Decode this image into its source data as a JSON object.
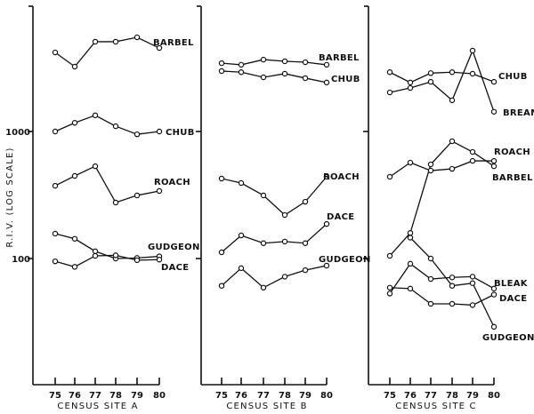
{
  "chart_data": [
    {
      "type": "line",
      "xlabel": "CENSUS SITE A",
      "ylabel": "R.I.V. (LOG SCALE)",
      "y_scale": "log",
      "ylim": [
        10,
        10000
      ],
      "y_ticks": [
        "1000",
        "100"
      ],
      "x": [
        "75",
        "76",
        "77",
        "78",
        "79",
        "80"
      ],
      "series": [
        {
          "name": "BARBEL",
          "values": [
            4190,
            3240,
            5090,
            5090,
            5510,
            4540
          ]
        },
        {
          "name": "CHUB",
          "values": [
            1000,
            1170,
            1340,
            1100,
            950,
            1000
          ]
        },
        {
          "name": "ROACH",
          "values": [
            374,
            447,
            533,
            276,
            314,
            340
          ]
        },
        {
          "name": "GUDGEON",
          "values": [
            157,
            143,
            114,
            100,
            101,
            104
          ]
        },
        {
          "name": "DACE",
          "values": [
            95,
            86,
            105,
            106,
            97,
            98
          ]
        }
      ]
    },
    {
      "type": "line",
      "xlabel": "CENSUS SITE B",
      "y_scale": "log",
      "ylim": [
        10,
        10000
      ],
      "x": [
        "75",
        "76",
        "77",
        "78",
        "79",
        "80"
      ],
      "series": [
        {
          "name": "BARBEL",
          "values": [
            3450,
            3350,
            3680,
            3570,
            3510,
            3350
          ]
        },
        {
          "name": "CHUB",
          "values": [
            2990,
            2930,
            2670,
            2850,
            2630,
            2430
          ]
        },
        {
          "name": "ROACH",
          "values": [
            426,
            393,
            314,
            220,
            280,
            440
          ]
        },
        {
          "name": "DACE",
          "values": [
            112,
            152,
            132,
            136,
            132,
            187
          ]
        },
        {
          "name": "GUDGEON",
          "values": [
            61,
            84,
            59,
            72,
            81,
            88
          ]
        }
      ]
    },
    {
      "type": "line",
      "xlabel": "CENSUS SITE C",
      "y_scale": "log",
      "ylim": [
        10,
        10000
      ],
      "x": [
        "75",
        "76",
        "77",
        "78",
        "79",
        "80"
      ],
      "series": [
        {
          "name": "CHUB",
          "values": [
            2930,
            2430,
            2880,
            2930,
            2850,
            2460
          ]
        },
        {
          "name": "BREAM",
          "values": [
            2030,
            2200,
            2460,
            1760,
            4330,
            1430
          ]
        },
        {
          "name": "ROACH",
          "values": [
            105,
            159,
            551,
            838,
            690,
            533
          ]
        },
        {
          "name": "BARBEL",
          "values": [
            440,
            569,
            492,
            508,
            587,
            587
          ]
        },
        {
          "name": "BLEAK",
          "values": [
            53,
            91,
            69,
            71,
            72,
            58
          ]
        },
        {
          "name": "DACE",
          "values": [
            59,
            58,
            44,
            44,
            43,
            52
          ]
        },
        {
          "name": "GUDGEON",
          "values": [
            null,
            146,
            100,
            61,
            64,
            29
          ]
        }
      ]
    }
  ]
}
